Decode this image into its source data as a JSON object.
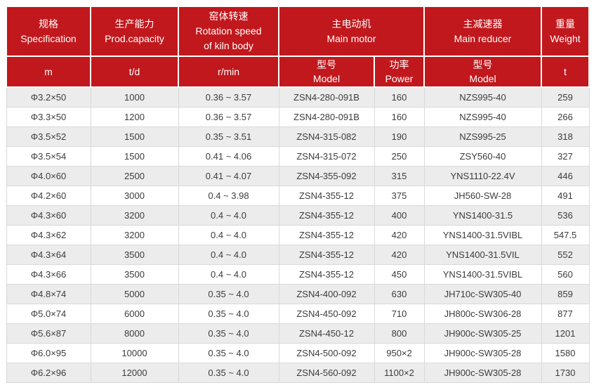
{
  "table": {
    "title_semantic": "rotary-kiln-technical-specifications",
    "header": {
      "specification": {
        "zh": "规格",
        "en": "Specification",
        "unit": "m"
      },
      "capacity": {
        "zh": "生产能力",
        "en": "Prod.capacity",
        "unit": "t/d"
      },
      "rotation": {
        "zh": "窑体转速",
        "en_line1": "Rotation speed",
        "en_line2": "of kiln body",
        "unit": "r/min"
      },
      "motor": {
        "zh": "主电动机",
        "en": "Main motor",
        "model": {
          "zh": "型号",
          "en": "Model"
        },
        "power": {
          "zh": "功率",
          "en": "Power"
        }
      },
      "reducer": {
        "zh": "主减速器",
        "en": "Main reducer",
        "model": {
          "zh": "型号",
          "en": "Model"
        }
      },
      "weight": {
        "zh": "重量",
        "en": "Weight",
        "unit": "t"
      }
    },
    "columns": [
      "specification",
      "capacity",
      "rotation-speed",
      "motor-model",
      "motor-power",
      "reducer-model",
      "weight"
    ],
    "rows": [
      [
        "Φ3.2×50",
        "1000",
        "0.36 ~ 3.57",
        "ZSN4-280-091B",
        "160",
        "NZS995-40",
        "259"
      ],
      [
        "Φ3.3×50",
        "1200",
        "0.36 ~ 3.57",
        "ZSN4-280-091B",
        "160",
        "NZS995-40",
        "266"
      ],
      [
        "Φ3.5×52",
        "1500",
        "0.35 ~ 3.51",
        "ZSN4-315-082",
        "190",
        "NZS995-25",
        "318"
      ],
      [
        "Φ3.5×54",
        "1500",
        "0.41 ~ 4.06",
        "ZSN4-315-072",
        "250",
        "ZSY560-40",
        "327"
      ],
      [
        "Φ4.0×60",
        "2500",
        "0.41 ~ 4.07",
        "ZSN4-355-092",
        "315",
        "YNS1110-22.4V",
        "446"
      ],
      [
        "Φ4.2×60",
        "3000",
        "0.4 ~ 3.98",
        "ZSN4-355-12",
        "375",
        "JH560-SW-28",
        "491"
      ],
      [
        "Φ4.3×60",
        "3200",
        "0.4 ~ 4.0",
        "ZSN4-355-12",
        "400",
        "YNS1400-31.5",
        "536"
      ],
      [
        "Φ4.3×62",
        "3200",
        "0.4 ~ 4.0",
        "ZSN4-355-12",
        "420",
        "YNS1400-31.5VIBL",
        "547.5"
      ],
      [
        "Φ4.3×64",
        "3500",
        "0.4 ~ 4.0",
        "ZSN4-355-12",
        "420",
        "YNS1400-31.5VIL",
        "552"
      ],
      [
        "Φ4.3×66",
        "3500",
        "0.4 ~ 4.0",
        "ZSN4-355-12",
        "450",
        "YNS1400-31.5VIBL",
        "560"
      ],
      [
        "Φ4.8×74",
        "5000",
        "0.35 ~ 4.0",
        "ZSN4-400-092",
        "630",
        "JH710c-SW305-40",
        "859"
      ],
      [
        "Φ5.0×74",
        "6000",
        "0.35 ~ 4.0",
        "ZSN4-450-092",
        "710",
        "JH800c-SW306-28",
        "877"
      ],
      [
        "Φ5.6×87",
        "8000",
        "0.35 ~ 4.0",
        "ZSN4-450-12",
        "800",
        "JH900c-SW305-25",
        "1201"
      ],
      [
        "Φ6.0×95",
        "10000",
        "0.35 ~ 4.0",
        "ZSN4-500-092",
        "950×2",
        "JH900c-SW305-28",
        "1580"
      ],
      [
        "Φ6.2×96",
        "12000",
        "0.35 ~ 4.0",
        "ZSN4-560-092",
        "1100×2",
        "JH900c-SW305-28",
        "1730"
      ]
    ]
  },
  "colors": {
    "header_bg": "#c1181d",
    "header_text": "#ffffff",
    "stripe_bg": "#ececec",
    "row_bg": "#ffffff",
    "grid_line": "#d9d9d9",
    "body_text": "#3c3c3c"
  }
}
